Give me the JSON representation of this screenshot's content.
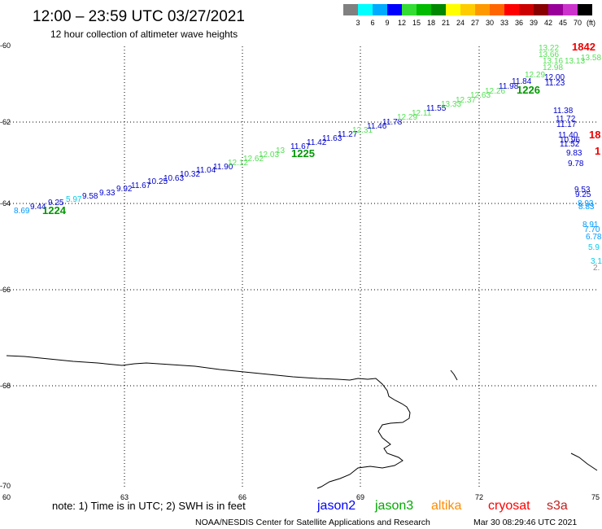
{
  "header": {
    "title": "12:00 – 23:59 UTC 03/27/2021",
    "subtitle": "12 hour collection of altimeter wave heights"
  },
  "color_scale": {
    "unit": "(ft)",
    "thresholds": [
      "3",
      "6",
      "9",
      "12",
      "15",
      "18",
      "21",
      "24",
      "27",
      "30",
      "33",
      "36",
      "39",
      "42",
      "45",
      "70"
    ],
    "colors": [
      "#808080",
      "#00ffff",
      "#00aaff",
      "#0000ff",
      "#33dd33",
      "#00bb00",
      "#008800",
      "#ffff00",
      "#ffcc00",
      "#ff9900",
      "#ff6600",
      "#ff0000",
      "#cc0000",
      "#880000",
      "#990099",
      "#cc33cc",
      "#000000"
    ]
  },
  "axes": {
    "lat_labels": [
      "-60",
      "-62",
      "-64",
      "-66",
      "-68",
      "-70"
    ],
    "lon_labels": [
      "60",
      "63",
      "66",
      "69",
      "72",
      "75"
    ]
  },
  "observations": [
    {
      "value": "8.69",
      "color": "#0099ff"
    },
    {
      "value": "9.44",
      "color": "#0000cc"
    },
    {
      "value": "9.25",
      "color": "#0000cc"
    },
    {
      "value": "5.97",
      "color": "#00ccee"
    },
    {
      "value": "9.58",
      "color": "#0000cc"
    },
    {
      "value": "9.33",
      "color": "#0000cc"
    },
    {
      "value": "9.92",
      "color": "#0000cc"
    },
    {
      "value": "11.67",
      "color": "#0000cc"
    },
    {
      "value": "10.25",
      "color": "#0000cc"
    },
    {
      "value": "10.63",
      "color": "#0000cc"
    },
    {
      "value": "10.32",
      "color": "#0000cc"
    },
    {
      "value": "11.04",
      "color": "#0000cc"
    },
    {
      "value": "11.90",
      "color": "#0000cc"
    },
    {
      "value": "12.12",
      "color": "#55e055"
    },
    {
      "value": "12.62",
      "color": "#55e055"
    },
    {
      "value": "12.03",
      "color": "#55e055"
    },
    {
      "value": "13",
      "color": "#55e055"
    },
    {
      "value": "11.67",
      "color": "#0000cc"
    },
    {
      "value": "11.42",
      "color": "#0000cc"
    },
    {
      "value": "11.63",
      "color": "#0000cc"
    },
    {
      "value": "11.27",
      "color": "#0000cc"
    },
    {
      "value": "12.31",
      "color": "#55e055"
    },
    {
      "value": "11.46",
      "color": "#0000cc"
    },
    {
      "value": "11.78",
      "color": "#0000cc"
    },
    {
      "value": "12.29",
      "color": "#55e055"
    },
    {
      "value": "12.11",
      "color": "#55e055"
    },
    {
      "value": "11.55",
      "color": "#0000cc"
    },
    {
      "value": "13.33",
      "color": "#55e055"
    },
    {
      "value": "12.37",
      "color": "#55e055"
    },
    {
      "value": "12.63",
      "color": "#55e055"
    },
    {
      "value": "12.26",
      "color": "#55e055"
    },
    {
      "value": "11.98",
      "color": "#0000cc"
    },
    {
      "value": "11.84",
      "color": "#0000cc"
    },
    {
      "value": "12.29",
      "color": "#55e055"
    },
    {
      "value": "12.00",
      "color": "#0000cc"
    },
    {
      "value": "11.23",
      "color": "#0000cc"
    },
    {
      "value": "13.22",
      "color": "#55e055"
    },
    {
      "value": "13.66",
      "color": "#55e055"
    },
    {
      "value": "13.16",
      "color": "#55e055"
    },
    {
      "value": "13.13",
      "color": "#55e055"
    },
    {
      "value": "13.58",
      "color": "#55e055"
    },
    {
      "value": "12.98",
      "color": "#55e055"
    },
    {
      "value": "11.38",
      "color": "#0000cc"
    },
    {
      "value": "11.72",
      "color": "#0000cc"
    },
    {
      "value": "11.17",
      "color": "#0000cc"
    },
    {
      "value": "11.40",
      "color": "#0000cc"
    },
    {
      "value": "10.96",
      "color": "#0000cc"
    },
    {
      "value": "11.52",
      "color": "#0000cc"
    },
    {
      "value": "9.83",
      "color": "#0000cc"
    },
    {
      "value": "9.78",
      "color": "#0000cc"
    },
    {
      "value": "9.53",
      "color": "#0000cc"
    },
    {
      "value": "9.25",
      "color": "#0000cc"
    },
    {
      "value": "8.93",
      "color": "#0099ff"
    },
    {
      "value": "8.83",
      "color": "#0099ff"
    },
    {
      "value": "8.91",
      "color": "#0099ff"
    },
    {
      "value": "7.70",
      "color": "#0099ff"
    },
    {
      "value": "6.78",
      "color": "#0099ff"
    },
    {
      "value": "5.9",
      "color": "#00ccee"
    },
    {
      "value": "3.1",
      "color": "#00ccee"
    },
    {
      "value": "2.",
      "color": "#8c8c8c"
    }
  ],
  "pass_times": [
    {
      "time": "1224",
      "color": "#009900"
    },
    {
      "time": "1225",
      "color": "#009900"
    },
    {
      "time": "1226",
      "color": "#009900"
    },
    {
      "time": "1842",
      "color": "#ee0000"
    },
    {
      "time": "18",
      "color": "#ee0000"
    },
    {
      "time": "1",
      "color": "#ee0000"
    }
  ],
  "note": "note: 1) Time is in UTC; 2) SWH is in feet",
  "satellites": [
    {
      "name": "jason2",
      "color": "#0000ff"
    },
    {
      "name": "jason3",
      "color": "#00aa00"
    },
    {
      "name": "altika",
      "color": "#ff8c00"
    },
    {
      "name": "cryosat",
      "color": "#ff0000"
    },
    {
      "name": "s3a",
      "color": "#c41e1e"
    }
  ],
  "footer": {
    "credit": "NOAA/NESDIS Center for Satellite Applications and Research",
    "timestamp": "Mar 30 08:29:46 UTC 2021"
  }
}
